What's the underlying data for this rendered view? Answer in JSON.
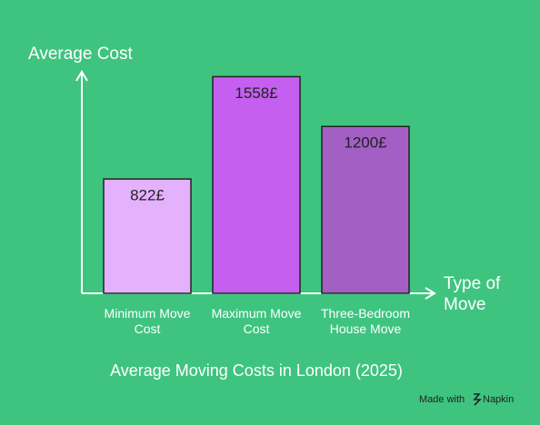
{
  "chart_data": {
    "type": "bar",
    "title": "Average Moving Costs in London (2025)",
    "y_label": "Average Cost",
    "x_label": "Type of Move",
    "categories": [
      "Minimum Move Cost",
      "Maximum Move Cost",
      "Three-Bedroom House Move"
    ],
    "values": [
      822,
      1558,
      1200
    ],
    "value_labels": [
      "822£",
      "1558£",
      "1200£"
    ],
    "colors": [
      "#e4b1fd",
      "#c45ff0",
      "#a35fc4"
    ],
    "ylim": [
      0,
      1600
    ]
  },
  "footer": {
    "made_with": "Made with",
    "brand": "Napkin"
  }
}
